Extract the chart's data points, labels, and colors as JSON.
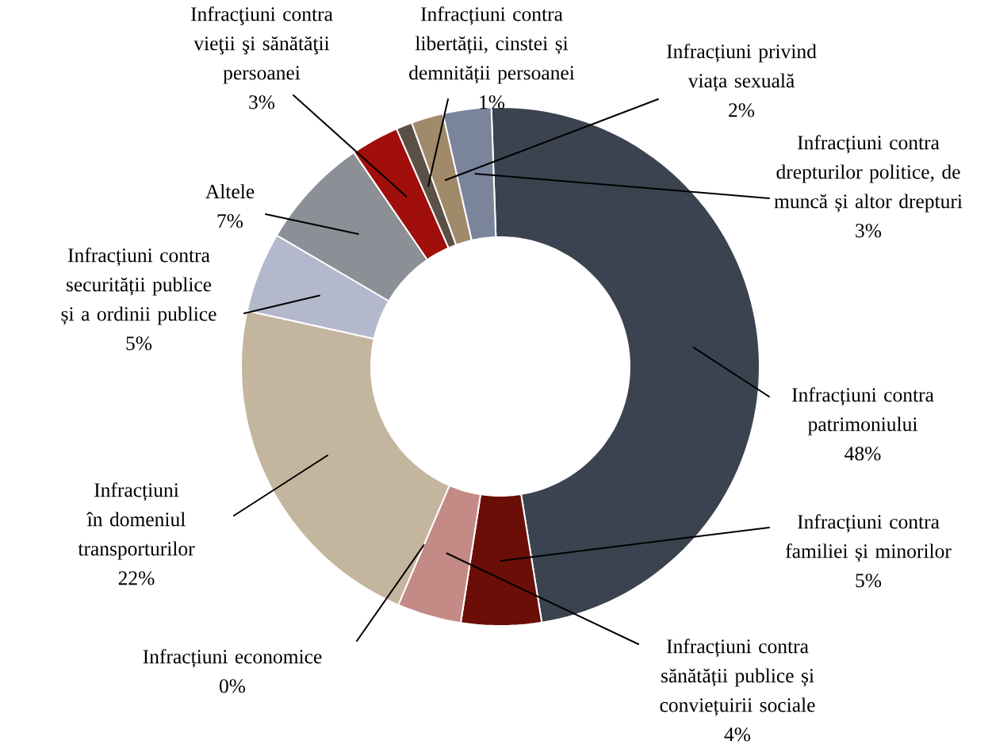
{
  "chart_data": {
    "type": "donut",
    "categories": [
      "Infracțiuni contra patrimoniului",
      "Infracțiuni contra familiei și minorilor",
      "Infracțiuni contra sănătății publice și conviețuirii sociale",
      "Infracțiuni economice",
      "Infracțiuni în domeniul transporturilor",
      "Infracțiuni contra securității publice și a ordinii publice",
      "Altele",
      "Infracţiuni contra vieţii şi sănătăţii persoanei",
      "Infracțiuni contra libertății, cinstei și demnității persoanei",
      "Infracțiuni privind viața sexuală",
      "Infracțiuni contra drepturilor politice, de muncă și altor drepturi"
    ],
    "values": [
      48,
      5,
      4,
      0,
      22,
      5,
      7,
      3,
      1,
      2,
      3
    ],
    "value_labels": [
      "48%",
      "5%",
      "4%",
      "0%",
      "22%",
      "5%",
      "7%",
      "3%",
      "1%",
      "2%",
      "3%"
    ],
    "colors": [
      "#3b4350",
      "#6b0e07",
      "#c48a86",
      "#bfbfbf",
      "#c4b59e",
      "#b4b8cc",
      "#8c9096",
      "#a00f0b",
      "#5a5046",
      "#a08a6a",
      "#7a859c"
    ]
  }
}
